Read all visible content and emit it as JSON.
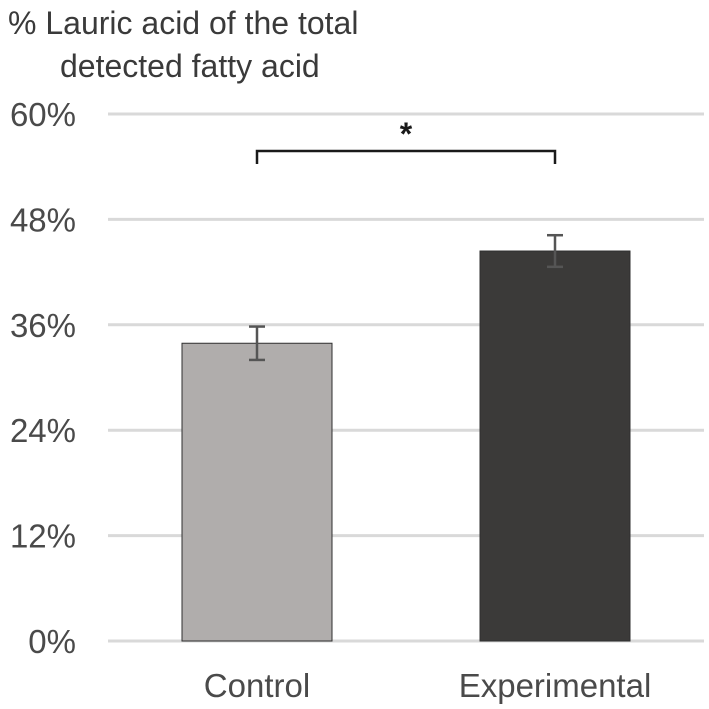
{
  "chart_data": {
    "type": "bar",
    "title_lines": [
      "% Lauric acid of the total",
      "detected fatty acid"
    ],
    "categories": [
      "Control",
      "Experimental"
    ],
    "values": [
      33.9,
      44.4
    ],
    "errors": [
      1.9,
      1.8
    ],
    "bar_colors": [
      "#b0adac",
      "#3b3a39"
    ],
    "yticks": [
      "0%",
      "12%",
      "24%",
      "36%",
      "48%",
      "60%"
    ],
    "ylim": [
      0,
      60
    ],
    "grid": true,
    "significance": {
      "label": "*",
      "between": [
        "Control",
        "Experimental"
      ]
    }
  }
}
